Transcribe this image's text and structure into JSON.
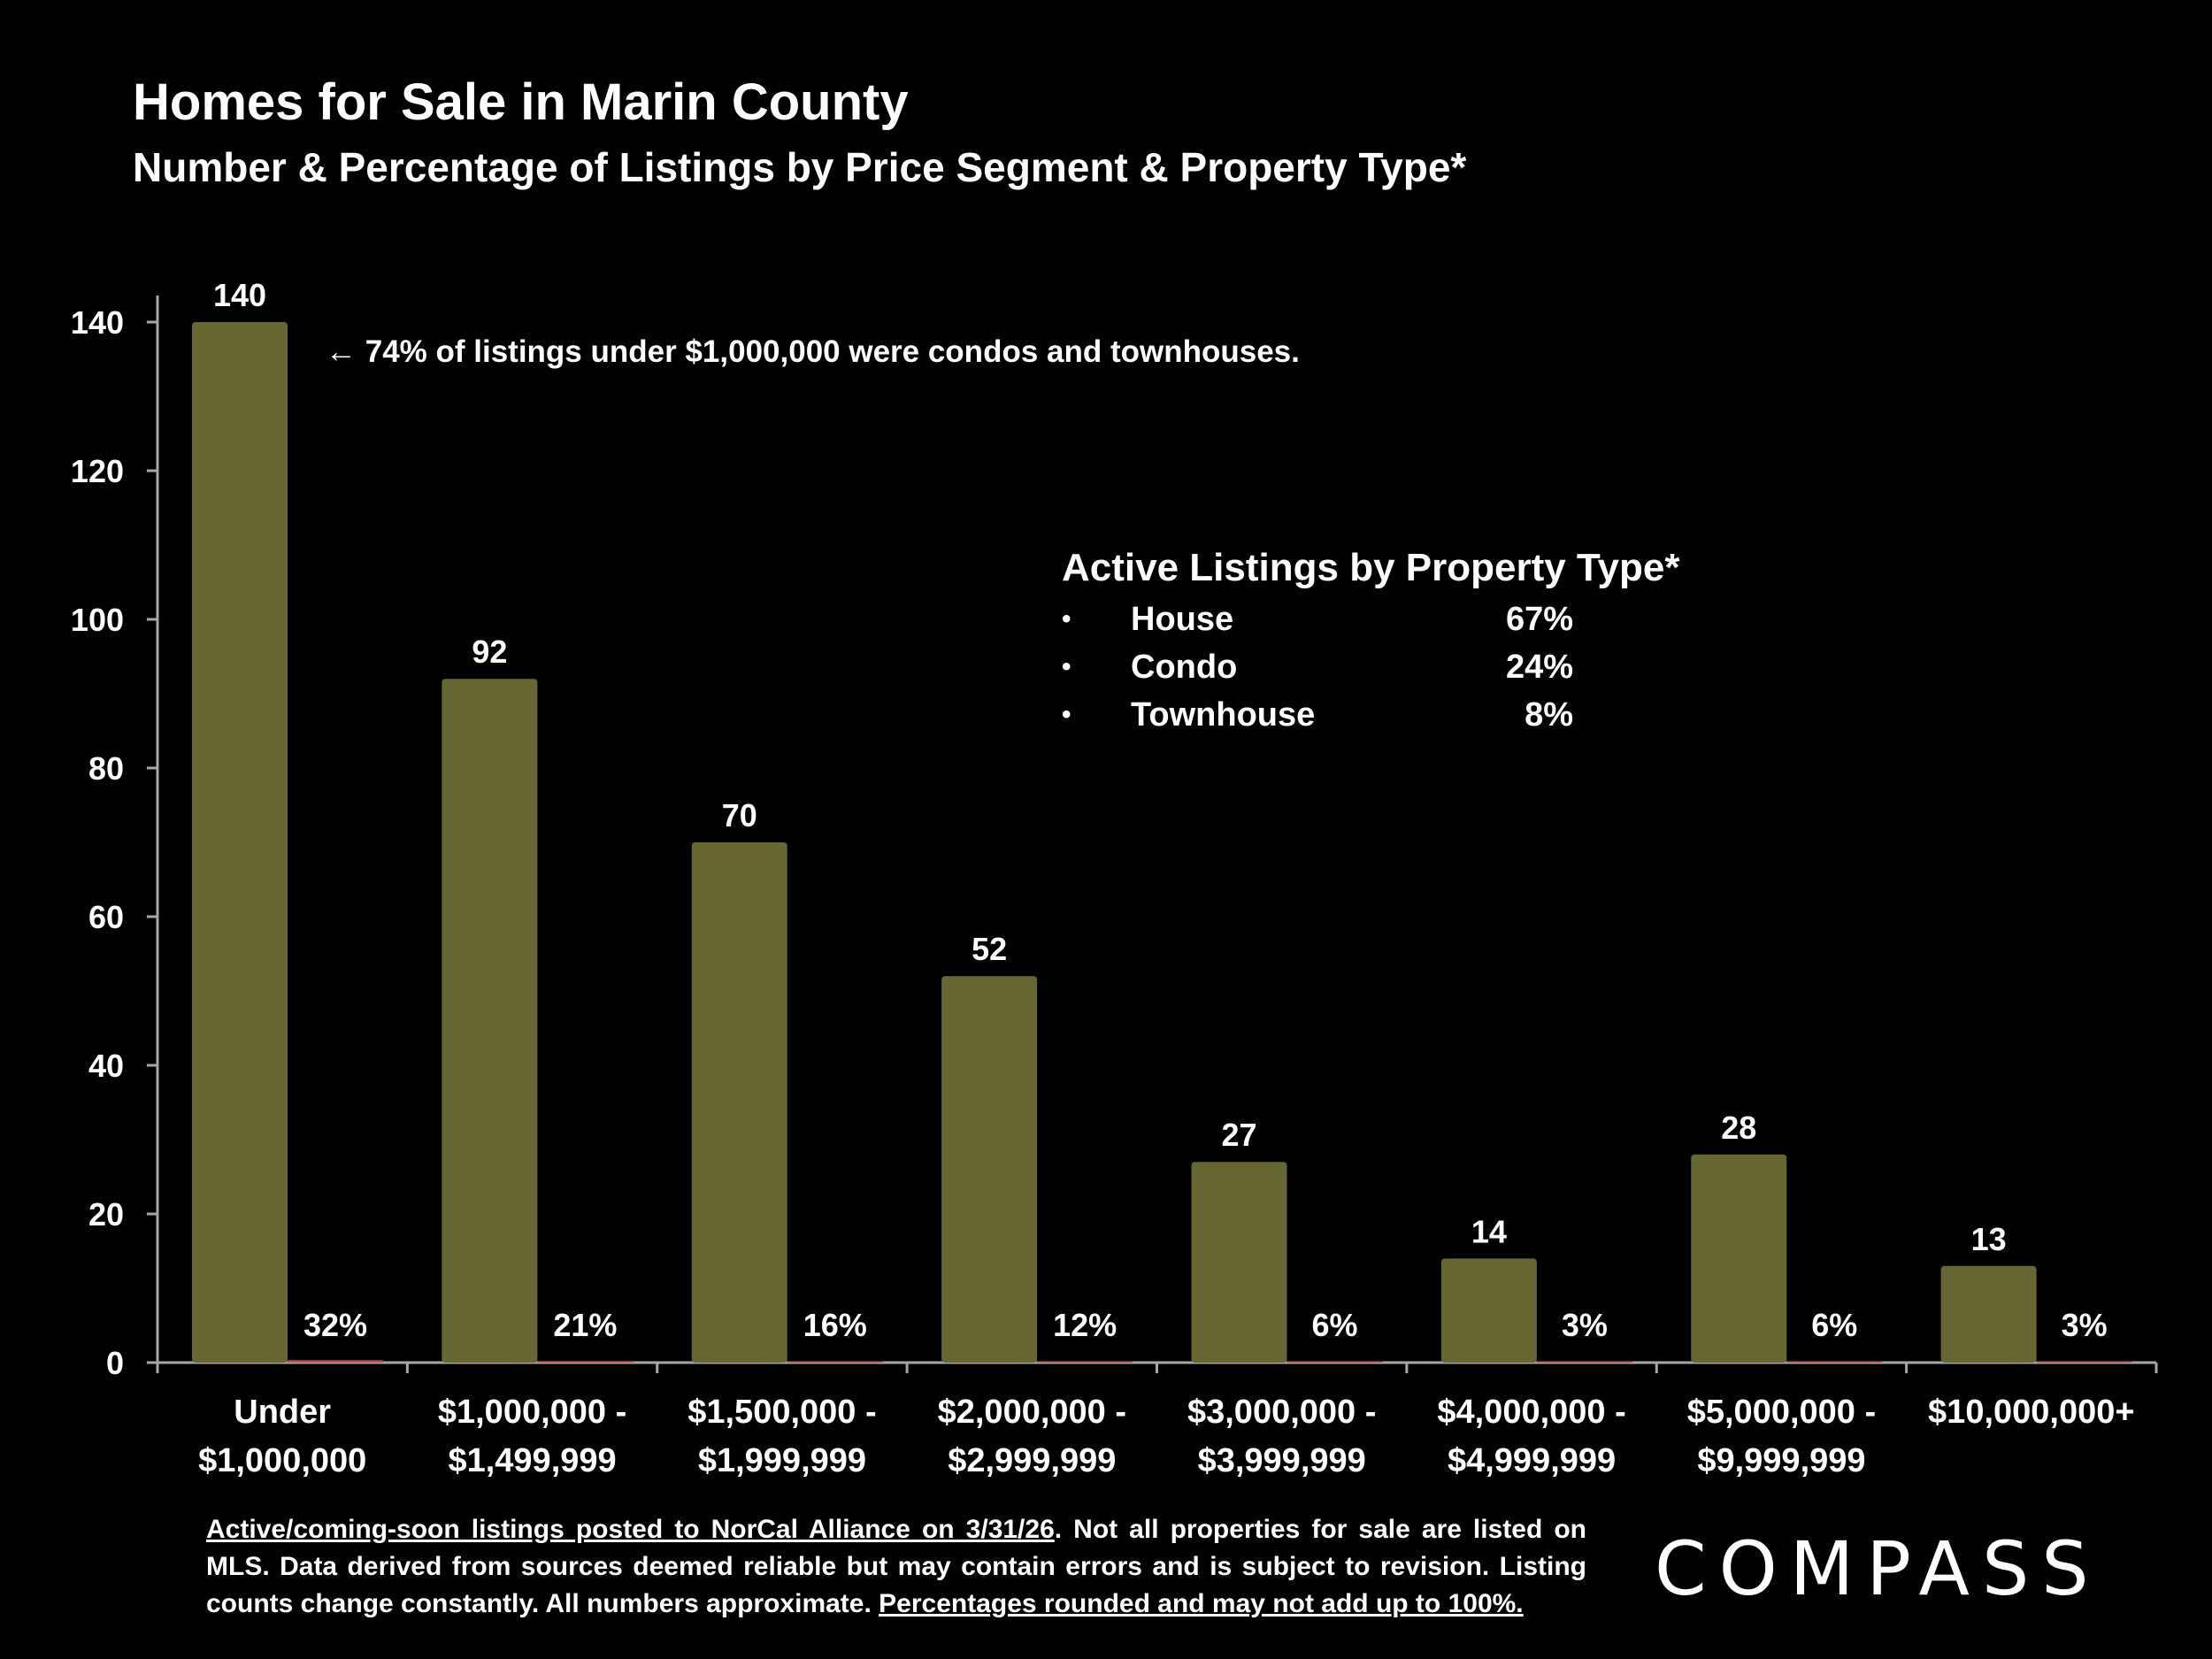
{
  "header": {
    "title": "Homes for Sale in Marin County",
    "subtitle": "Number & Percentage of Listings by Price Segment & Property Type*"
  },
  "annotation": "← 74% of listings under $1,000,000 were condos and townhouses.",
  "legend": {
    "title": "Active Listings by Property Type*",
    "items": [
      {
        "bullet": "•",
        "label": "House",
        "value": "67%"
      },
      {
        "bullet": "•",
        "label": "Condo",
        "value": "24%"
      },
      {
        "bullet": "•",
        "label": "Townhouse",
        "value": "8%"
      }
    ]
  },
  "chart_data": {
    "type": "bar",
    "title": "Homes for Sale in Marin County",
    "xlabel": "",
    "ylabel": "",
    "ylim": [
      0,
      140
    ],
    "yticks": [
      0,
      20,
      40,
      60,
      80,
      100,
      120,
      140
    ],
    "categories": [
      [
        "Under",
        "$1,000,000"
      ],
      [
        "$1,000,000 -",
        "$1,499,999"
      ],
      [
        "$1,500,000 -",
        "$1,999,999"
      ],
      [
        "$2,000,000 -",
        "$2,999,999"
      ],
      [
        "$3,000,000 -",
        "$3,999,999"
      ],
      [
        "$4,000,000 -",
        "$4,999,999"
      ],
      [
        "$5,000,000 -",
        "$9,999,999"
      ],
      [
        "$10,000,000+"
      ]
    ],
    "series": [
      {
        "name": "Number of Listings",
        "color": "#676733",
        "values": [
          140,
          92,
          70,
          52,
          27,
          14,
          28,
          13
        ],
        "labels": [
          "140",
          "92",
          "70",
          "52",
          "27",
          "14",
          "28",
          "13"
        ]
      },
      {
        "name": "Percentage of Listings",
        "color": "#c0504d",
        "values": [
          0.32,
          0.21,
          0.16,
          0.12,
          0.06,
          0.03,
          0.06,
          0.03
        ],
        "labels": [
          "32%",
          "21%",
          "16%",
          "12%",
          "6%",
          "3%",
          "6%",
          "3%"
        ]
      }
    ],
    "grid": false,
    "axis_color": "#a6a6a6"
  },
  "footnote": {
    "part1": "Active/coming-soon listings posted to NorCal Alliance on 3/31/26",
    "part2": ". Not all properties for sale are listed on MLS. Data derived from sources deemed reliable but may contain errors and is subject to revision. Listing counts change constantly. All numbers approximate. ",
    "part3": "Percentages rounded and may not add up to 100%."
  },
  "logo": "COMPASS"
}
